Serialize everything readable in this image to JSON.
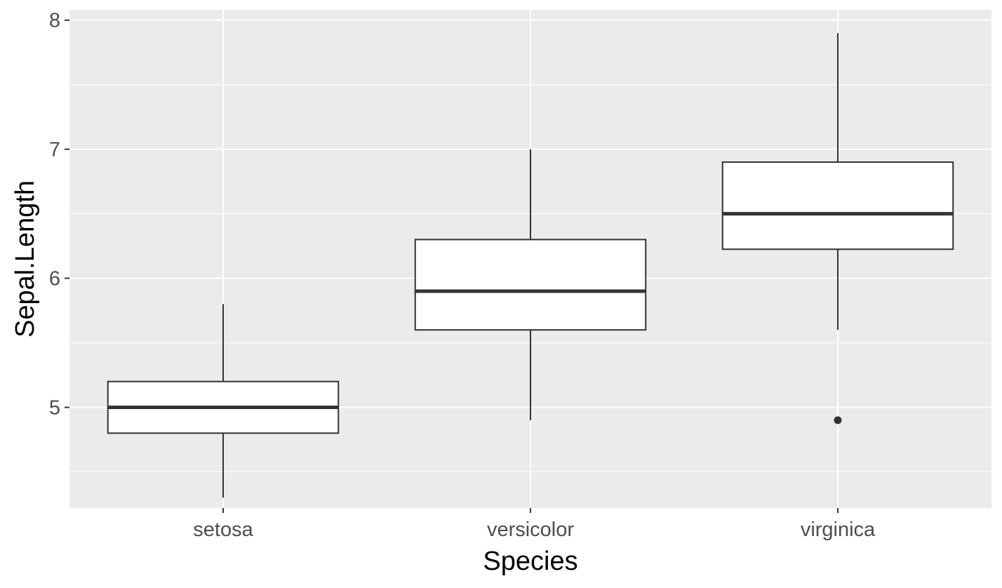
{
  "chart_data": {
    "type": "boxplot",
    "xlabel": "Species",
    "ylabel": "Sepal.Length",
    "categories": [
      "setosa",
      "versicolor",
      "virginica"
    ],
    "ylim": [
      4.22,
      8.08
    ],
    "y_major_ticks": [
      5,
      6,
      7,
      8
    ],
    "y_minor_ticks": [
      4.5,
      5.5,
      6.5,
      7.5
    ],
    "grid": true,
    "boxes": [
      {
        "category": "setosa",
        "whisker_low": 4.3,
        "q1": 4.8,
        "median": 5.0,
        "q3": 5.2,
        "whisker_high": 5.8,
        "outliers": []
      },
      {
        "category": "versicolor",
        "whisker_low": 4.9,
        "q1": 5.6,
        "median": 5.9,
        "q3": 6.3,
        "whisker_high": 7.0,
        "outliers": []
      },
      {
        "category": "virginica",
        "whisker_low": 5.6,
        "q1": 6.225,
        "median": 6.5,
        "q3": 6.9,
        "whisker_high": 7.9,
        "outliers": [
          4.9
        ]
      }
    ],
    "colors": {
      "panel_background": "#ebebeb",
      "grid_major": "#ffffff",
      "box_fill": "#ffffff",
      "box_line": "#333333",
      "tick_text": "#4d4d4d",
      "title_text": "#000000"
    }
  }
}
